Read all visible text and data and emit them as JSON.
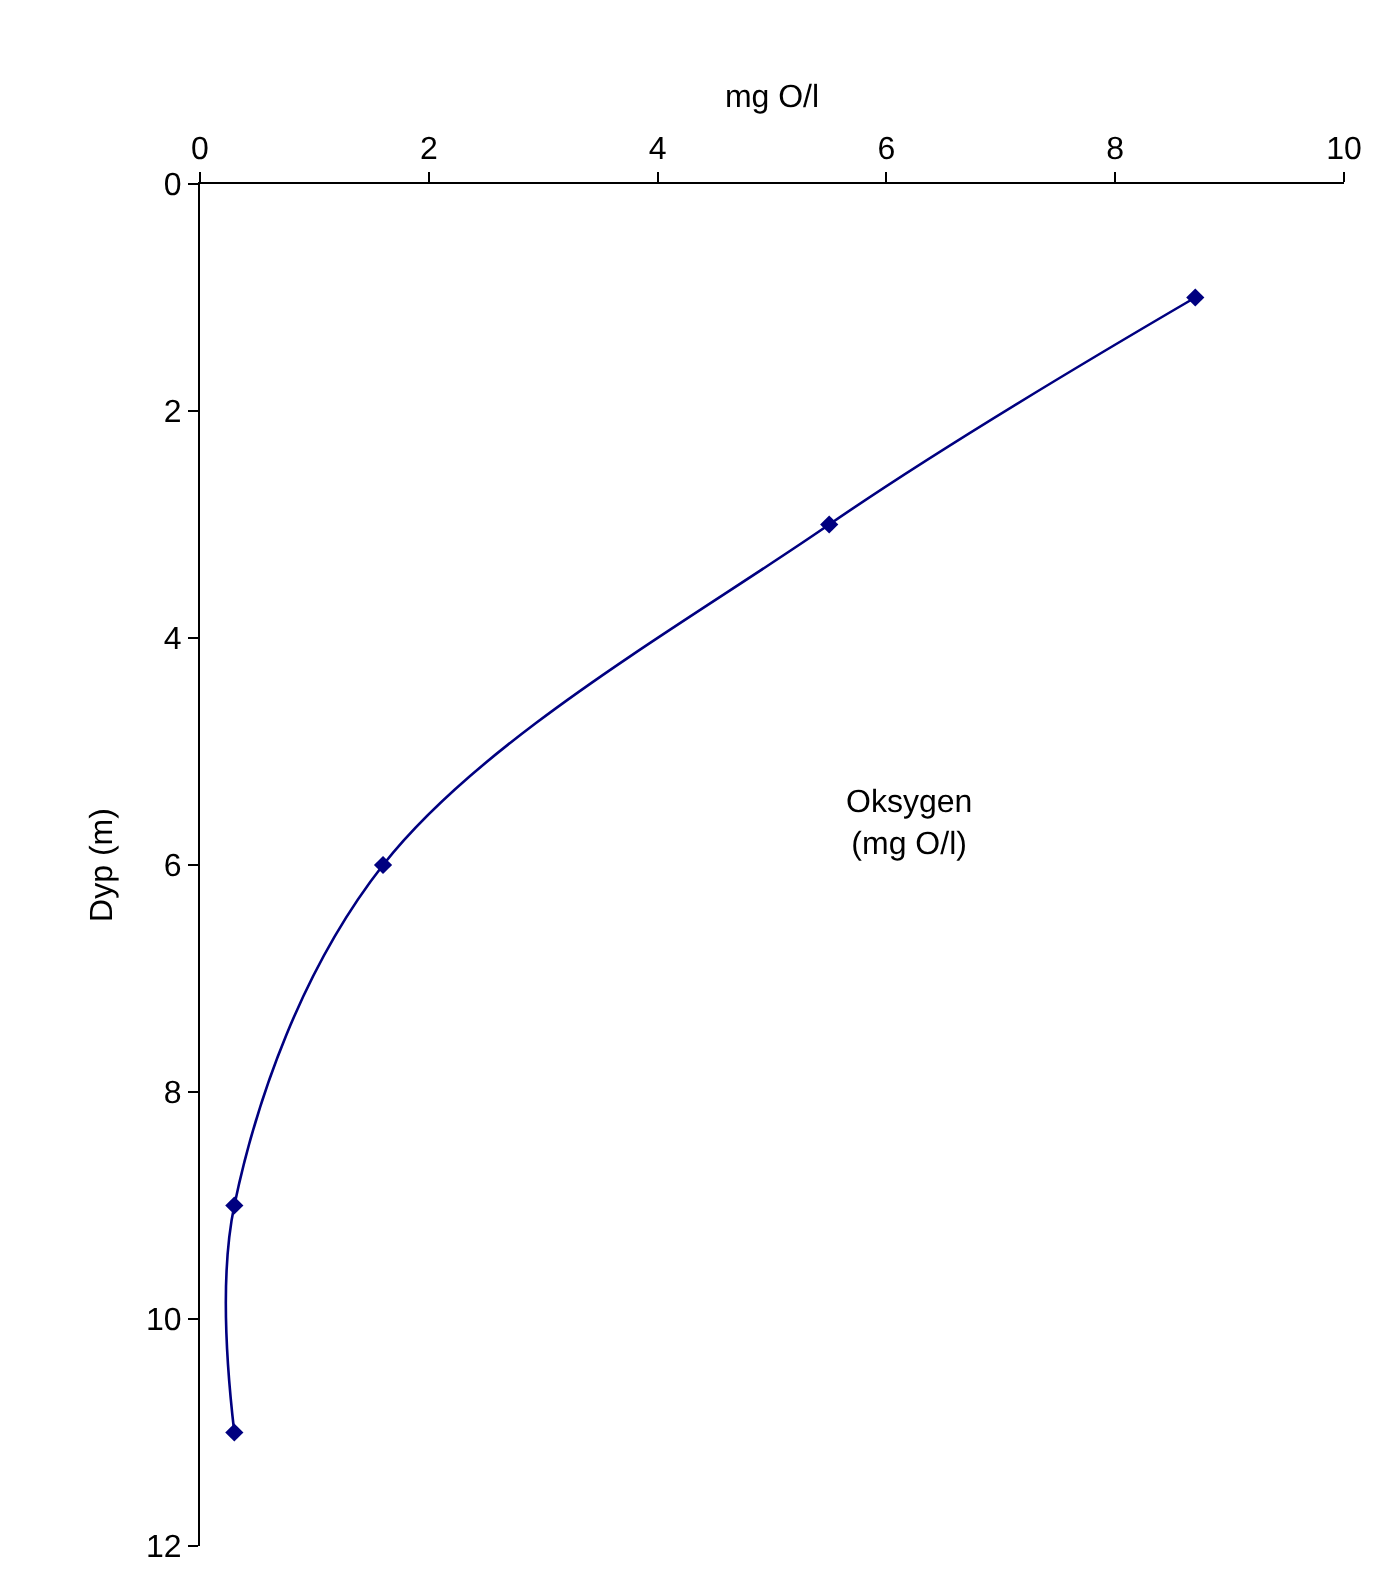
{
  "chart_data": {
    "type": "line",
    "xlabel": "mg O/l",
    "ylabel": "Dyp (m)",
    "x": [
      8.7,
      5.5,
      1.6,
      0.3,
      0.3
    ],
    "series": [
      {
        "color": "#000080",
        "values": [
          1,
          3,
          6,
          9,
          11
        ]
      }
    ],
    "xlim": [
      0,
      10
    ],
    "xticks": [
      0,
      2,
      4,
      6,
      8,
      10
    ],
    "ylim": [
      12,
      0
    ],
    "yticks": [
      0,
      2,
      4,
      6,
      8,
      10,
      12
    ],
    "annotations": [
      "Oksygen\n(mg O/l)"
    ],
    "marker": "diamond",
    "line_style": "solid"
  }
}
